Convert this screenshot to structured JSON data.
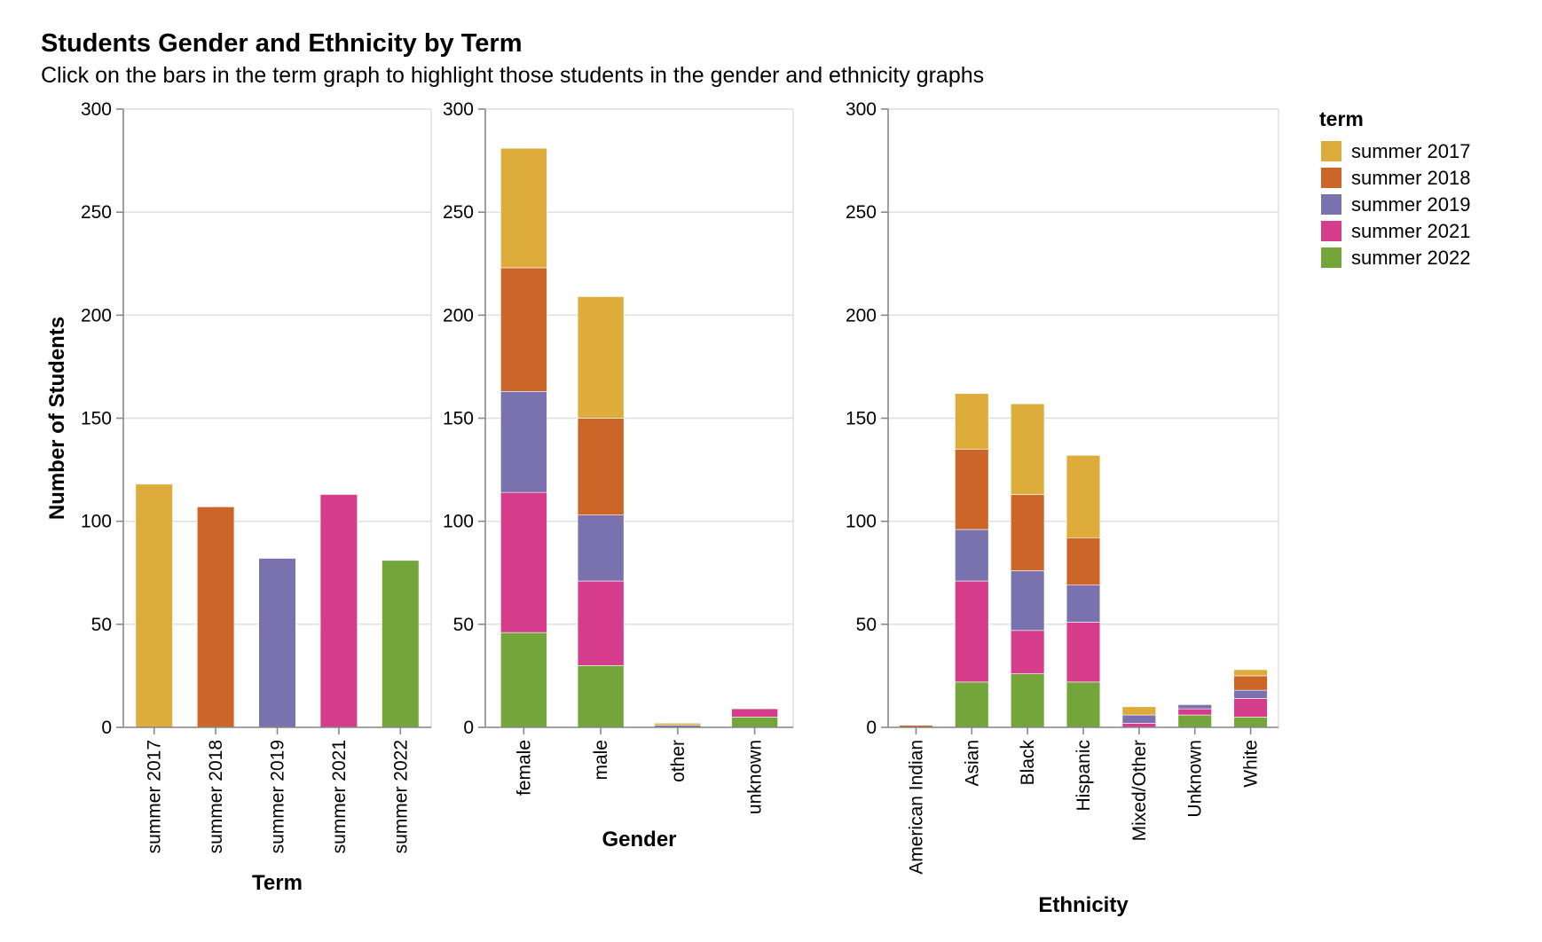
{
  "title": "Students Gender and Ethnicity by Term",
  "subtitle": "Click on the bars in the term graph to highlight those students in the gender and ethnicity graphs",
  "legend": {
    "title": "term",
    "items": [
      {
        "label": "summer 2017",
        "color": "#ddac3b"
      },
      {
        "label": "summer 2018",
        "color": "#cc6628"
      },
      {
        "label": "summer 2019",
        "color": "#7972ae"
      },
      {
        "label": "summer 2021",
        "color": "#d53c8a"
      },
      {
        "label": "summer 2022",
        "color": "#74a53b"
      }
    ]
  },
  "chart_data": [
    {
      "type": "bar",
      "xlabel": "Term",
      "ylabel": "Number of Students",
      "ylim": [
        0,
        300
      ],
      "yticks": [
        0,
        50,
        100,
        150,
        200,
        250,
        300
      ],
      "grid": true,
      "categories": [
        "summer 2017",
        "summer 2018",
        "summer 2019",
        "summer 2021",
        "summer 2022"
      ],
      "values": [
        118,
        107,
        82,
        113,
        81
      ]
    },
    {
      "type": "bar",
      "stacked": true,
      "xlabel": "Gender",
      "ylabel": "",
      "ylim": [
        0,
        300
      ],
      "yticks": [
        0,
        50,
        100,
        150,
        200,
        250,
        300
      ],
      "grid": true,
      "categories": [
        "female",
        "male",
        "other",
        "unknown"
      ],
      "series": [
        {
          "name": "summer 2022",
          "values": [
            46,
            30,
            0,
            5
          ]
        },
        {
          "name": "summer 2021",
          "values": [
            68,
            41,
            0,
            4
          ]
        },
        {
          "name": "summer 2019",
          "values": [
            49,
            32,
            1,
            0
          ]
        },
        {
          "name": "summer 2018",
          "values": [
            60,
            47,
            0,
            0
          ]
        },
        {
          "name": "summer 2017",
          "values": [
            58,
            59,
            1,
            0
          ]
        }
      ]
    },
    {
      "type": "bar",
      "stacked": true,
      "xlabel": "Ethnicity",
      "ylabel": "",
      "ylim": [
        0,
        300
      ],
      "yticks": [
        0,
        50,
        100,
        150,
        200,
        250,
        300
      ],
      "grid": true,
      "categories": [
        "American Indian",
        "Asian",
        "Black",
        "Hispanic",
        "Mixed/Other",
        "Unknown",
        "White"
      ],
      "series": [
        {
          "name": "summer 2022",
          "values": [
            0,
            22,
            26,
            22,
            0,
            6,
            5
          ]
        },
        {
          "name": "summer 2021",
          "values": [
            0,
            49,
            21,
            29,
            2,
            3,
            9
          ]
        },
        {
          "name": "summer 2019",
          "values": [
            0,
            25,
            29,
            18,
            4,
            2,
            4
          ]
        },
        {
          "name": "summer 2018",
          "values": [
            1,
            39,
            37,
            23,
            0,
            0,
            7
          ]
        },
        {
          "name": "summer 2017",
          "values": [
            0,
            27,
            44,
            40,
            4,
            0,
            3
          ]
        }
      ]
    }
  ]
}
